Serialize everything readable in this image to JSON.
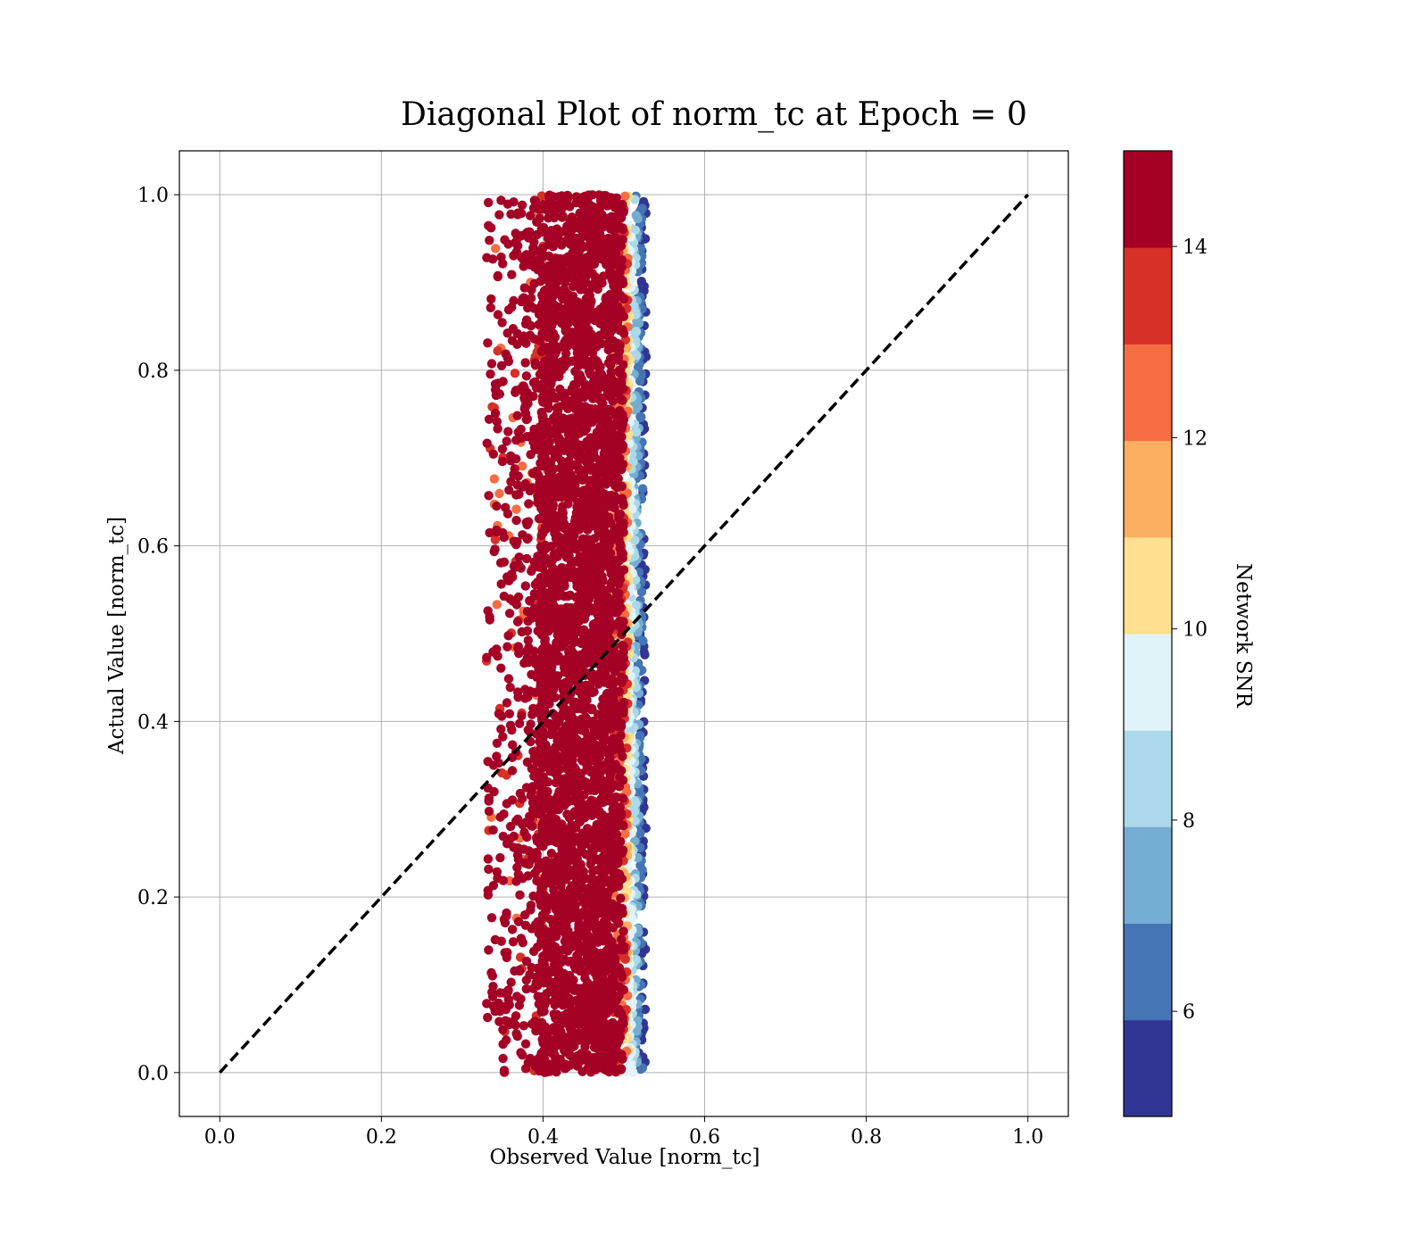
{
  "chart_data": {
    "type": "scatter",
    "title": "Diagonal Plot of norm_tc at Epoch = 0",
    "xlabel": "Observed Value [norm_tc]",
    "ylabel": "Actual Value [norm_tc]",
    "xlim": [
      -0.05,
      1.05
    ],
    "ylim": [
      -0.05,
      1.05
    ],
    "xticks": [
      "0.0",
      "0.2",
      "0.4",
      "0.6",
      "0.8",
      "1.0"
    ],
    "yticks": [
      "0.0",
      "0.2",
      "0.4",
      "0.6",
      "0.8",
      "1.0"
    ],
    "grid": true,
    "reference_line": {
      "x": [
        0,
        1
      ],
      "y": [
        0,
        1
      ],
      "style": "dashed",
      "color": "#000000"
    },
    "point_cloud": {
      "x_range": [
        0.33,
        0.53
      ],
      "y_range": [
        0.0,
        1.0
      ],
      "dense_core_x_range": [
        0.4,
        0.5
      ],
      "color_by": "Network SNR",
      "trend": "high SNR points toward lower observed values; low SNR points at the right edge (~0.51–0.53)"
    },
    "colorbar": {
      "label": "Network SNR",
      "range": [
        4.9,
        15.0
      ],
      "ticks": [
        "6",
        "8",
        "10",
        "12",
        "14"
      ],
      "tick_values": [
        6,
        8,
        10,
        12,
        14
      ],
      "boundaries": [
        4.9,
        5.91,
        6.92,
        7.93,
        8.94,
        9.95,
        10.96,
        11.97,
        12.98,
        13.99,
        15.0
      ],
      "colors": [
        "#313695",
        "#4575b4",
        "#74add1",
        "#abd9e9",
        "#e0f3f8",
        "#fee090",
        "#fdae61",
        "#f46d43",
        "#d73027",
        "#a50026"
      ]
    }
  }
}
